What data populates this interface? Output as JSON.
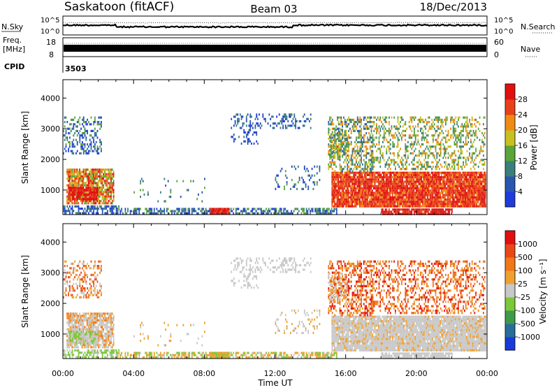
{
  "header": {
    "site": "Saskatoon (fitACF)",
    "beam": "Beam 03",
    "date": "18/Dec/2013"
  },
  "top_panels": {
    "nsky_label": "N.Sky",
    "nsky_ticks": [
      "10^5",
      "10^0"
    ],
    "nsearch_label": "N.Search",
    "nsearch_ticks": [
      "10^5",
      "10^0"
    ],
    "freq_label": "Freq.",
    "freq_unit": "[MHz]",
    "freq_ticks": [
      "18",
      "8"
    ],
    "nave_label": "Nave",
    "nave_ticks": [
      "60",
      "0"
    ],
    "cpid_label": "CPID",
    "cpid_value": "3503"
  },
  "chart_data": [
    {
      "type": "heatmap",
      "name": "power-panel",
      "ylabel": "Slant Range [km]",
      "yticks": [
        1000,
        2000,
        3000,
        4000
      ],
      "ylim": [
        200,
        4600
      ],
      "xlim": [
        0,
        24
      ],
      "colorbar": {
        "label": "Power [dB]",
        "ticks": [
          "4",
          "8",
          "12",
          "16",
          "20",
          "24",
          "28"
        ],
        "colors": [
          "#1f3bdc",
          "#2a55b0",
          "#3a7f7a",
          "#5aa43a",
          "#c8c020",
          "#f08a14",
          "#e8401a",
          "#e01010"
        ]
      }
    },
    {
      "type": "heatmap",
      "name": "velocity-panel",
      "ylabel": "Slant Range [km]",
      "yticks": [
        1000,
        2000,
        3000,
        4000
      ],
      "ylim": [
        200,
        4600
      ],
      "xlim": [
        0,
        24
      ],
      "xlabel": "Time UT",
      "xticks": [
        "00:00",
        "04:00",
        "08:00",
        "12:00",
        "16:00",
        "20:00",
        "00:00"
      ],
      "colorbar": {
        "label": "Velocity [m s⁻¹]",
        "ticks": [
          "1000",
          "500",
          "100",
          "25",
          "-25",
          "-100",
          "-500",
          "-1000"
        ],
        "colors": [
          "#1a3ad8",
          "#2a6c9a",
          "#3e9a4a",
          "#7cc83a",
          "#c8c8c8",
          "#f0a030",
          "#f07818",
          "#e84818",
          "#e01010"
        ]
      }
    }
  ]
}
